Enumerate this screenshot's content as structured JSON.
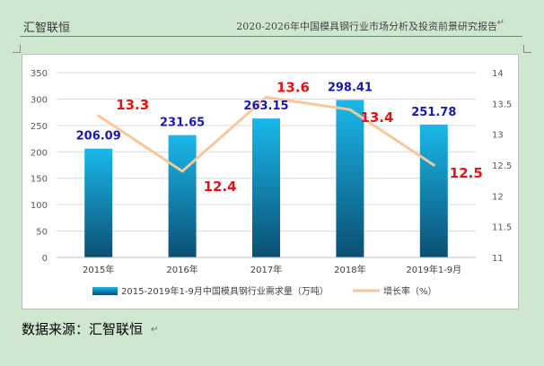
{
  "header": {
    "left": "汇智联恒",
    "right": "2020-2026年中国模具钢行业市场分析及投资前景研究报告"
  },
  "source": "数据来源：汇智联恒",
  "colors": {
    "bar_top": "#1ab8ea",
    "bar_bottom": "#0b4f73",
    "line": "#f5c79b",
    "bar_label": "#1a1aa8",
    "line_label": "#e21414"
  },
  "chart_data": {
    "type": "bar",
    "categories": [
      "2015年",
      "2016年",
      "2017年",
      "2018年",
      "2019年1-9月"
    ],
    "series": [
      {
        "name": "2015-2019年1-9月中国模具钢行业需求量（万吨）",
        "type": "bar",
        "axis": "left",
        "values": [
          206.09,
          231.65,
          263.15,
          298.41,
          251.78
        ]
      },
      {
        "name": "增长率（%）",
        "type": "line",
        "axis": "right",
        "values": [
          13.3,
          12.4,
          13.6,
          13.4,
          12.5
        ]
      }
    ],
    "bar_labels": [
      "206.09",
      "231.65",
      "263.15",
      "298.41",
      "251.78"
    ],
    "line_labels": [
      "13.3",
      "12.4",
      "13.6",
      "13.4",
      "12.5"
    ],
    "y_left": {
      "min": 0,
      "max": 350,
      "ticks": [
        "0",
        "50",
        "100",
        "150",
        "200",
        "250",
        "300",
        "350"
      ]
    },
    "y_right": {
      "min": 11,
      "max": 14,
      "ticks": [
        "11",
        "11.5",
        "12",
        "12.5",
        "13",
        "13.5",
        "14"
      ]
    },
    "legend": "bottom",
    "grid": true
  }
}
